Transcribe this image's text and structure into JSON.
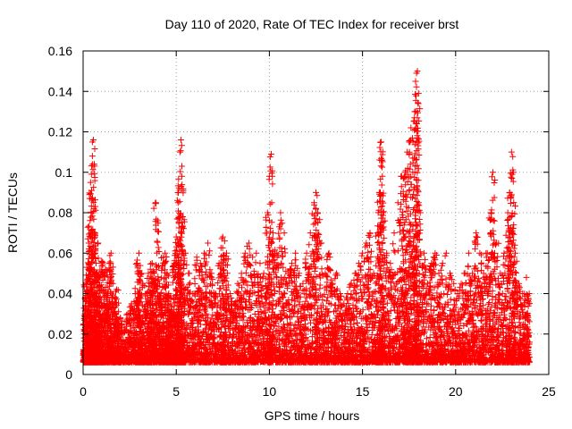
{
  "chart_data": {
    "type": "scatter",
    "title": "Day 110 of 2020, Rate Of TEC Index for receiver brst",
    "xlabel": "GPS time / hours",
    "ylabel": "ROTI / TECUs",
    "xlim": [
      0,
      25
    ],
    "ylim": [
      0,
      0.16
    ],
    "xticks": [
      "0",
      "5",
      "10",
      "15",
      "20",
      "25"
    ],
    "yticks": [
      "0",
      "0.02",
      "0.04",
      "0.06",
      "0.08",
      "0.1",
      "0.12",
      "0.14",
      "0.16"
    ],
    "grid": true,
    "marker": "plus",
    "color": "#ff0000",
    "series": [
      {
        "points": [
          [
            0.05,
            0.012
          ],
          [
            0.1,
            0.03
          ],
          [
            0.15,
            0.045
          ],
          [
            0.2,
            0.053
          ],
          [
            0.25,
            0.02
          ],
          [
            0.3,
            0.065
          ],
          [
            0.35,
            0.087
          ],
          [
            0.4,
            0.095
          ],
          [
            0.45,
            0.071
          ],
          [
            0.5,
            0.108
          ],
          [
            0.55,
            0.116
          ],
          [
            0.6,
            0.104
          ],
          [
            0.65,
            0.06
          ],
          [
            0.7,
            0.05
          ],
          [
            0.75,
            0.038
          ],
          [
            0.8,
            0.065
          ],
          [
            0.9,
            0.048
          ],
          [
            1.0,
            0.056
          ],
          [
            1.1,
            0.03
          ],
          [
            1.2,
            0.052
          ],
          [
            1.3,
            0.04
          ],
          [
            1.4,
            0.055
          ],
          [
            1.5,
            0.06
          ],
          [
            1.6,
            0.035
          ],
          [
            1.7,
            0.03
          ],
          [
            1.8,
            0.042
          ],
          [
            1.9,
            0.025
          ],
          [
            2.0,
            0.028
          ],
          [
            2.2,
            0.022
          ],
          [
            2.4,
            0.03
          ],
          [
            2.6,
            0.035
          ],
          [
            2.8,
            0.04
          ],
          [
            2.9,
            0.055
          ],
          [
            3.0,
            0.06
          ],
          [
            3.1,
            0.05
          ],
          [
            3.2,
            0.045
          ],
          [
            3.4,
            0.04
          ],
          [
            3.5,
            0.05
          ],
          [
            3.6,
            0.045
          ],
          [
            3.7,
            0.055
          ],
          [
            3.8,
            0.05
          ],
          [
            3.9,
            0.085
          ],
          [
            4.0,
            0.076
          ],
          [
            4.1,
            0.045
          ],
          [
            4.2,
            0.03
          ],
          [
            4.3,
            0.058
          ],
          [
            4.4,
            0.06
          ],
          [
            4.5,
            0.05
          ],
          [
            4.6,
            0.04
          ],
          [
            4.7,
            0.035
          ],
          [
            4.8,
            0.03
          ],
          [
            4.9,
            0.055
          ],
          [
            5.0,
            0.068
          ],
          [
            5.1,
            0.085
          ],
          [
            5.15,
            0.092
          ],
          [
            5.2,
            0.11
          ],
          [
            5.25,
            0.116
          ],
          [
            5.3,
            0.098
          ],
          [
            5.35,
            0.078
          ],
          [
            5.5,
            0.06
          ],
          [
            5.7,
            0.05
          ],
          [
            5.9,
            0.04
          ],
          [
            6.1,
            0.058
          ],
          [
            6.3,
            0.055
          ],
          [
            6.5,
            0.06
          ],
          [
            6.7,
            0.065
          ],
          [
            6.9,
            0.05
          ],
          [
            7.1,
            0.04
          ],
          [
            7.3,
            0.055
          ],
          [
            7.5,
            0.068
          ],
          [
            7.6,
            0.066
          ],
          [
            7.7,
            0.06
          ],
          [
            7.9,
            0.04
          ],
          [
            8.1,
            0.035
          ],
          [
            8.3,
            0.045
          ],
          [
            8.5,
            0.05
          ],
          [
            8.7,
            0.06
          ],
          [
            8.9,
            0.065
          ],
          [
            9.1,
            0.058
          ],
          [
            9.3,
            0.06
          ],
          [
            9.5,
            0.055
          ],
          [
            9.7,
            0.05
          ],
          [
            9.9,
            0.08
          ],
          [
            10.0,
            0.098
          ],
          [
            10.1,
            0.109
          ],
          [
            10.2,
            0.07
          ],
          [
            10.4,
            0.06
          ],
          [
            10.6,
            0.08
          ],
          [
            10.8,
            0.07
          ],
          [
            11.0,
            0.05
          ],
          [
            11.2,
            0.055
          ],
          [
            11.4,
            0.06
          ],
          [
            11.6,
            0.05
          ],
          [
            11.8,
            0.045
          ],
          [
            12.0,
            0.06
          ],
          [
            12.2,
            0.07
          ],
          [
            12.4,
            0.085
          ],
          [
            12.5,
            0.09
          ],
          [
            12.6,
            0.08
          ],
          [
            12.8,
            0.065
          ],
          [
            13.0,
            0.05
          ],
          [
            13.2,
            0.06
          ],
          [
            13.4,
            0.045
          ],
          [
            13.6,
            0.05
          ],
          [
            13.8,
            0.04
          ],
          [
            14.0,
            0.035
          ],
          [
            14.2,
            0.04
          ],
          [
            14.4,
            0.045
          ],
          [
            14.6,
            0.05
          ],
          [
            14.8,
            0.055
          ],
          [
            15.0,
            0.06
          ],
          [
            15.2,
            0.065
          ],
          [
            15.4,
            0.07
          ],
          [
            15.6,
            0.05
          ],
          [
            15.8,
            0.07
          ],
          [
            15.9,
            0.09
          ],
          [
            16.0,
            0.115
          ],
          [
            16.05,
            0.106
          ],
          [
            16.1,
            0.08
          ],
          [
            16.3,
            0.06
          ],
          [
            16.5,
            0.055
          ],
          [
            16.7,
            0.07
          ],
          [
            16.9,
            0.085
          ],
          [
            17.1,
            0.098
          ],
          [
            17.2,
            0.088
          ],
          [
            17.3,
            0.1
          ],
          [
            17.4,
            0.11
          ],
          [
            17.5,
            0.115
          ],
          [
            17.6,
            0.122
          ],
          [
            17.7,
            0.1
          ],
          [
            17.8,
            0.13
          ],
          [
            17.85,
            0.145
          ],
          [
            17.9,
            0.149
          ],
          [
            17.95,
            0.15
          ],
          [
            18.0,
            0.134
          ],
          [
            18.1,
            0.08
          ],
          [
            18.3,
            0.06
          ],
          [
            18.5,
            0.045
          ],
          [
            18.7,
            0.055
          ],
          [
            18.9,
            0.06
          ],
          [
            19.1,
            0.05
          ],
          [
            19.3,
            0.055
          ],
          [
            19.5,
            0.06
          ],
          [
            19.7,
            0.05
          ],
          [
            19.9,
            0.045
          ],
          [
            20.1,
            0.04
          ],
          [
            20.3,
            0.045
          ],
          [
            20.5,
            0.05
          ],
          [
            20.7,
            0.06
          ],
          [
            20.9,
            0.05
          ],
          [
            21.1,
            0.07
          ],
          [
            21.3,
            0.06
          ],
          [
            21.5,
            0.05
          ],
          [
            21.7,
            0.06
          ],
          [
            21.9,
            0.08
          ],
          [
            22.0,
            0.1
          ],
          [
            22.2,
            0.065
          ],
          [
            22.4,
            0.05
          ],
          [
            22.6,
            0.06
          ],
          [
            22.8,
            0.08
          ],
          [
            22.9,
            0.09
          ],
          [
            23.0,
            0.11
          ],
          [
            23.1,
            0.1
          ],
          [
            23.2,
            0.06
          ],
          [
            23.4,
            0.045
          ],
          [
            23.6,
            0.04
          ],
          [
            23.8,
            0.048
          ],
          [
            23.95,
            0.04
          ]
        ]
      }
    ]
  }
}
